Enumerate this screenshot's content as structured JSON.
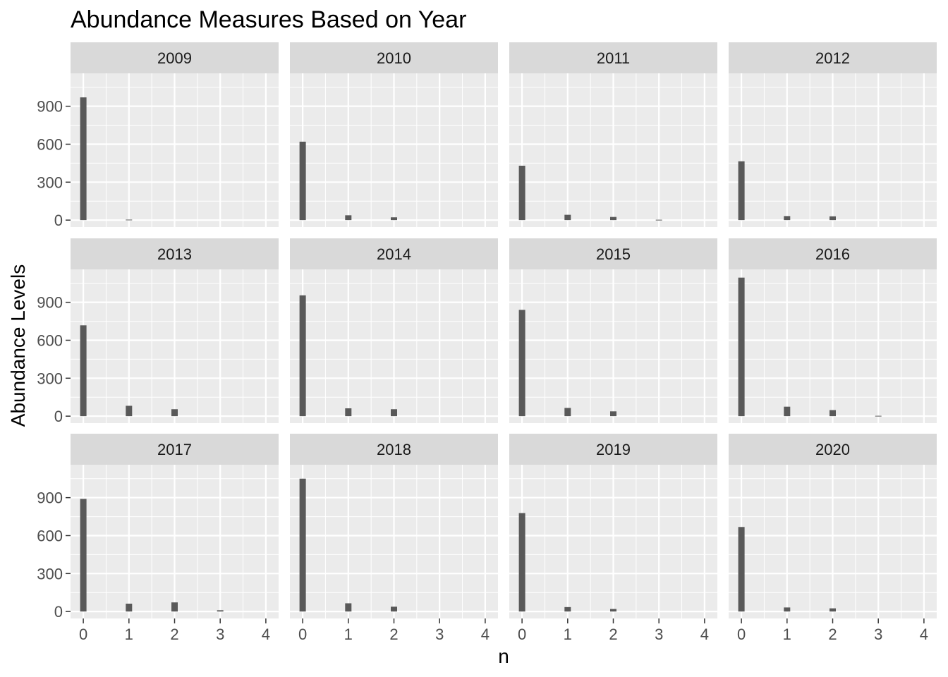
{
  "chart_data": {
    "type": "bar",
    "title": "Abundance Measures Based on Year",
    "xlabel": "n",
    "ylabel": "Abundance Levels",
    "x_ticks": [
      0,
      1,
      2,
      3,
      4
    ],
    "y_ticks": [
      0,
      300,
      600,
      900
    ],
    "xlim": [
      -0.28,
      4.28
    ],
    "ylim": [
      -55,
      1160
    ],
    "grid": true,
    "bar_color": "#595959",
    "panel_background": "#ebebeb",
    "strip_background": "#d9d9d9",
    "grid_color": "#ffffff",
    "facets": [
      {
        "label": "2009",
        "x": [
          0,
          1
        ],
        "values": [
          970,
          4
        ]
      },
      {
        "label": "2010",
        "x": [
          0,
          1,
          2
        ],
        "values": [
          620,
          38,
          22
        ]
      },
      {
        "label": "2011",
        "x": [
          0,
          1,
          2,
          3
        ],
        "values": [
          430,
          42,
          25,
          3
        ]
      },
      {
        "label": "2012",
        "x": [
          0,
          1,
          2
        ],
        "values": [
          465,
          32,
          30
        ]
      },
      {
        "label": "2013",
        "x": [
          0,
          1,
          2
        ],
        "values": [
          718,
          82,
          55
        ]
      },
      {
        "label": "2014",
        "x": [
          0,
          1,
          2
        ],
        "values": [
          955,
          62,
          55
        ]
      },
      {
        "label": "2015",
        "x": [
          0,
          1,
          2
        ],
        "values": [
          840,
          65,
          38
        ]
      },
      {
        "label": "2016",
        "x": [
          0,
          1,
          2,
          3
        ],
        "values": [
          1095,
          75,
          48,
          3
        ]
      },
      {
        "label": "2017",
        "x": [
          0,
          1,
          2,
          3
        ],
        "values": [
          890,
          62,
          72,
          10
        ]
      },
      {
        "label": "2018",
        "x": [
          0,
          1,
          2
        ],
        "values": [
          1050,
          65,
          38
        ]
      },
      {
        "label": "2019",
        "x": [
          0,
          1,
          2
        ],
        "values": [
          778,
          35,
          20
        ]
      },
      {
        "label": "2020",
        "x": [
          0,
          1,
          2
        ],
        "values": [
          668,
          32,
          25
        ]
      }
    ]
  }
}
